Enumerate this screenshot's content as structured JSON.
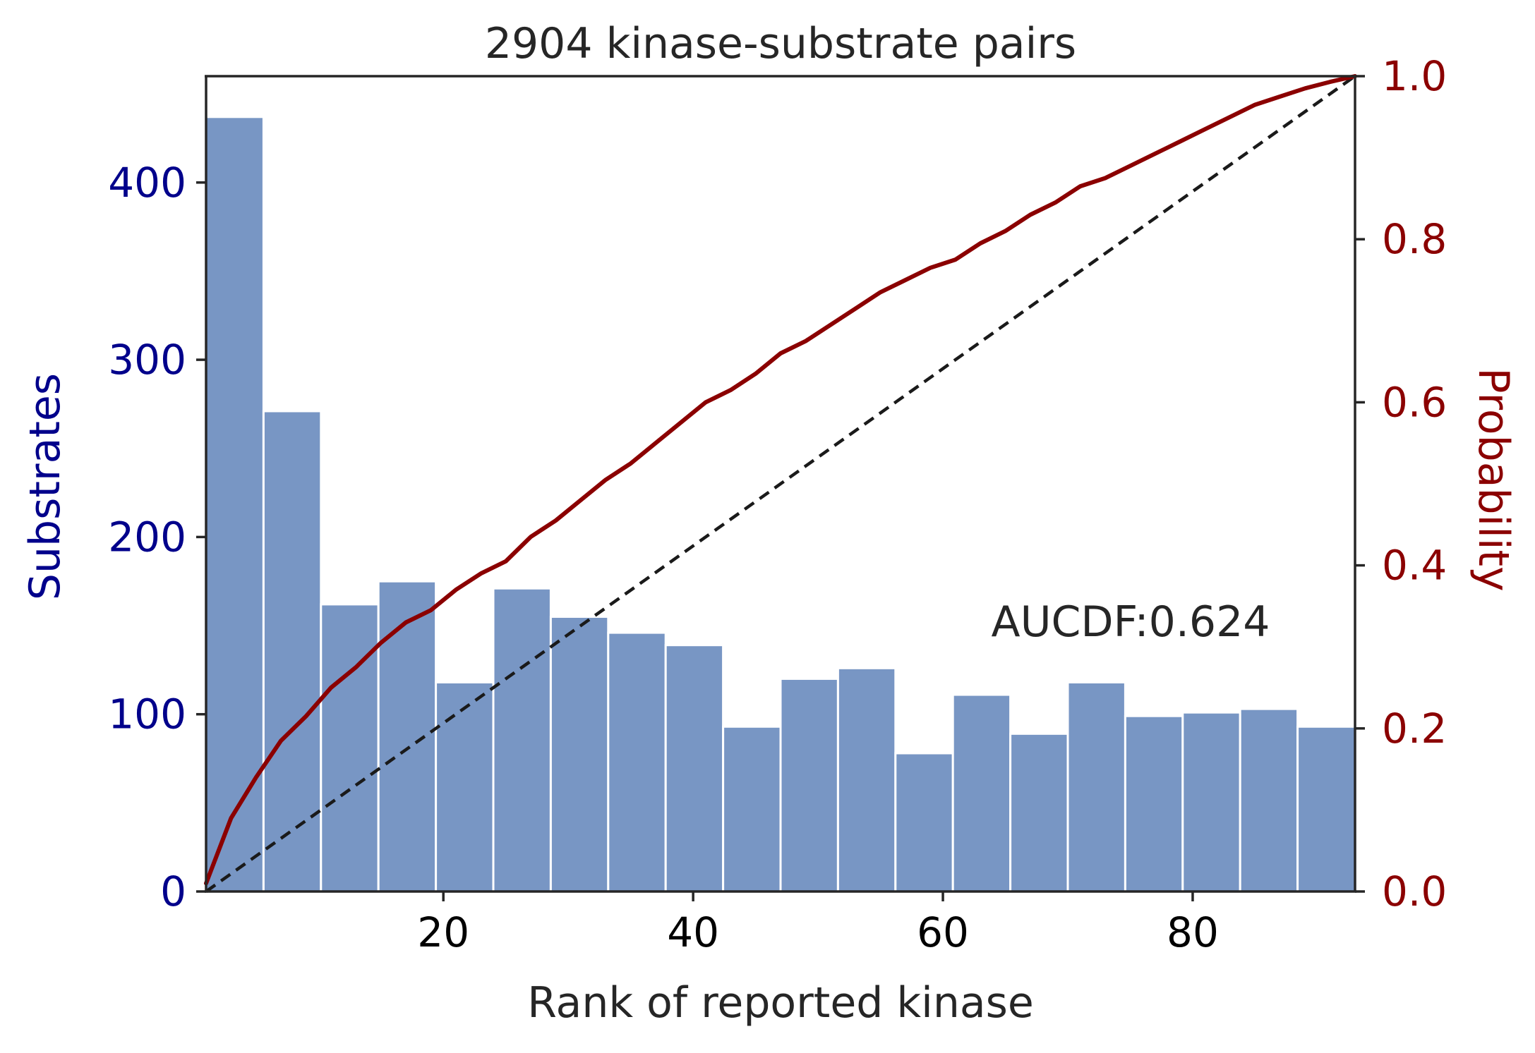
{
  "chart_data": {
    "type": "bar",
    "title": "2904 kinase-substrate pairs",
    "xlabel": "Rank of reported kinase",
    "ylabel_left": "Substrates",
    "ylabel_right": "Probability",
    "annotation": "AUCDF:0.624",
    "xlim": [
      1,
      93
    ],
    "ylim_left": [
      0,
      460
    ],
    "ylim_right": [
      0,
      1.0
    ],
    "x_ticks": [
      20,
      40,
      60,
      80
    ],
    "x_tick_labels": [
      "20",
      "40",
      "60",
      "80"
    ],
    "y_left_ticks": [
      0,
      100,
      200,
      300,
      400
    ],
    "y_left_tick_labels": [
      "0",
      "100",
      "200",
      "300",
      "400"
    ],
    "y_right_ticks": [
      0,
      0.2,
      0.4,
      0.6,
      0.8,
      1.0
    ],
    "y_right_tick_labels": [
      "0.0",
      "0.2",
      "0.4",
      "0.6",
      "0.8",
      "1.0"
    ],
    "histogram": {
      "bin_edges": [
        1,
        5.6,
        10.2,
        14.8,
        19.4,
        24,
        28.6,
        33.2,
        37.8,
        42.4,
        47,
        51.6,
        56.2,
        60.8,
        65.4,
        70,
        74.6,
        79.2,
        83.8,
        88.4,
        93
      ],
      "counts": [
        437,
        271,
        162,
        175,
        118,
        171,
        155,
        146,
        139,
        93,
        120,
        126,
        78,
        111,
        89,
        118,
        99,
        101,
        103,
        93
      ]
    },
    "cdf_line": {
      "x": [
        1,
        2,
        3,
        5,
        7,
        9,
        11,
        13,
        15,
        17,
        19,
        21,
        23,
        25,
        27,
        29,
        31,
        33,
        35,
        37,
        39,
        41,
        43,
        45,
        47,
        49,
        51,
        53,
        55,
        57,
        59,
        61,
        63,
        65,
        67,
        69,
        71,
        73,
        75,
        77,
        79,
        81,
        83,
        85,
        87,
        89,
        91,
        93
      ],
      "y": [
        0.01,
        0.05,
        0.09,
        0.14,
        0.185,
        0.215,
        0.25,
        0.275,
        0.305,
        0.33,
        0.345,
        0.37,
        0.39,
        0.405,
        0.435,
        0.455,
        0.48,
        0.505,
        0.525,
        0.55,
        0.575,
        0.6,
        0.615,
        0.635,
        0.66,
        0.675,
        0.695,
        0.715,
        0.735,
        0.75,
        0.765,
        0.775,
        0.795,
        0.81,
        0.83,
        0.845,
        0.865,
        0.875,
        0.89,
        0.905,
        0.92,
        0.935,
        0.95,
        0.965,
        0.975,
        0.985,
        0.993,
        1.0
      ]
    },
    "diagonal": {
      "x": [
        1,
        93
      ],
      "y": [
        0.0,
        1.0
      ]
    },
    "colors": {
      "bars": "#7896c4",
      "bar_edge": "#ffffff",
      "cdf_line": "#8b0000",
      "diagonal": "#1a1a1a",
      "left_axis_text": "#00008b",
      "right_axis_text": "#8b0000",
      "title_text": "#262626",
      "spine": "#262626"
    },
    "grid": false,
    "legend": "none"
  }
}
